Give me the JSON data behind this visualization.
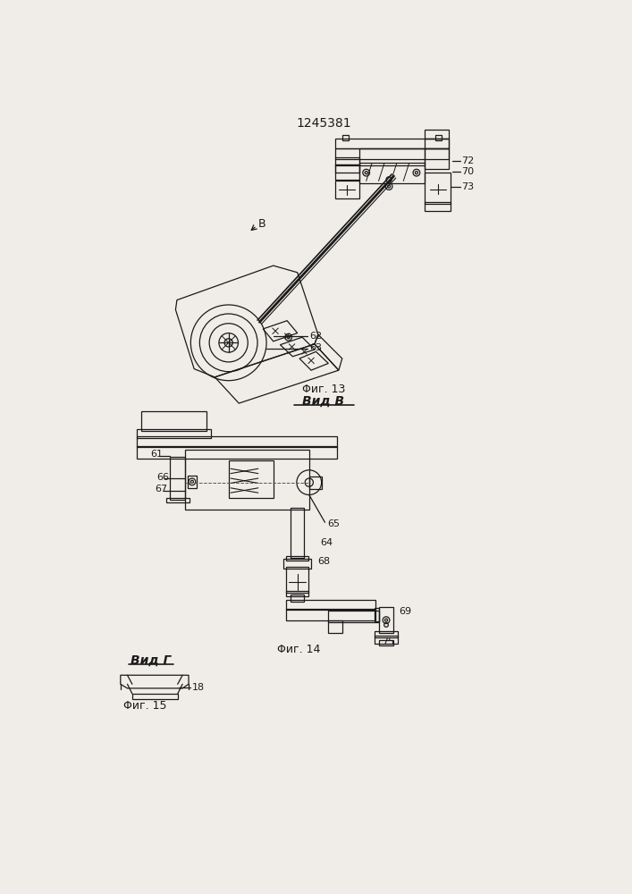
{
  "title": "1245381",
  "bg_color": "#f0ede8",
  "line_color": "#1a1a1a",
  "fig13_caption": "Φиг. 13",
  "fig14_caption": "Φиг. 14",
  "fig15_caption": "Φиг. 15",
  "vid_b": "Вид В",
  "vid_g": "Вид Г"
}
